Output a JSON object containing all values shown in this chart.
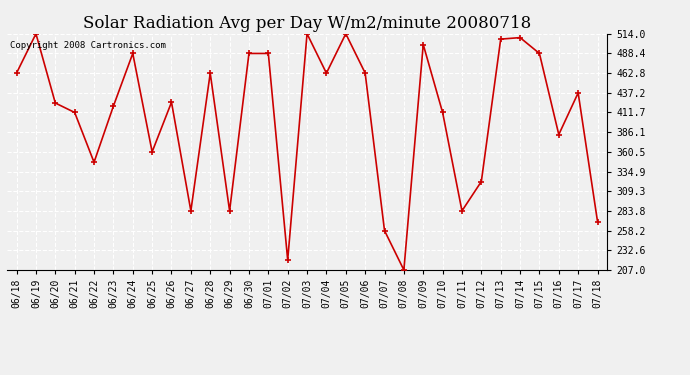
{
  "title": "Solar Radiation Avg per Day W/m2/minute 20080718",
  "copyright": "Copyright 2008 Cartronics.com",
  "dates": [
    "06/18",
    "06/19",
    "06/20",
    "06/21",
    "06/22",
    "06/23",
    "06/24",
    "06/25",
    "06/26",
    "06/27",
    "06/28",
    "06/29",
    "06/30",
    "07/01",
    "07/02",
    "07/03",
    "07/04",
    "07/05",
    "07/06",
    "07/07",
    "07/08",
    "07/09",
    "07/10",
    "07/11",
    "07/12",
    "07/13",
    "07/14",
    "07/15",
    "07/16",
    "07/17",
    "07/18"
  ],
  "values": [
    463.0,
    514.0,
    424.0,
    411.7,
    347.0,
    420.0,
    488.4,
    360.5,
    425.0,
    283.8,
    462.8,
    283.8,
    488.4,
    488.4,
    220.0,
    514.0,
    462.8,
    514.0,
    463.0,
    258.2,
    207.0,
    500.0,
    411.7,
    283.8,
    322.0,
    507.0,
    509.0,
    488.4,
    383.0,
    437.2,
    270.0
  ],
  "ylim_min": 207.0,
  "ylim_max": 514.0,
  "yticks": [
    207.0,
    232.6,
    258.2,
    283.8,
    309.3,
    334.9,
    360.5,
    386.1,
    411.7,
    437.2,
    462.8,
    488.4,
    514.0
  ],
  "line_color": "#cc0000",
  "marker": "+",
  "marker_size": 5,
  "marker_linewidth": 1.2,
  "line_width": 1.2,
  "background_color": "#f0f0f0",
  "plot_bg_color": "#f0f0f0",
  "grid_color": "#ffffff",
  "title_fontsize": 12,
  "tick_fontsize": 7,
  "copyright_fontsize": 6.5,
  "title_fontweight": "normal"
}
